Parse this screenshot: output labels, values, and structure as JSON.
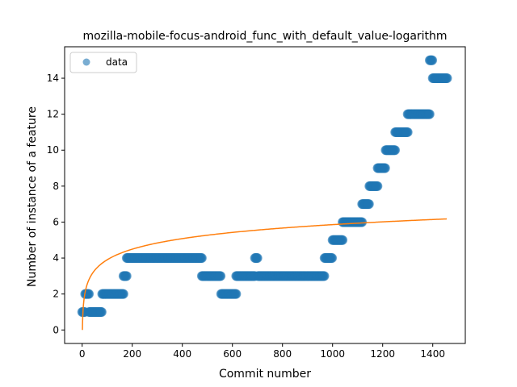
{
  "chart_data": {
    "type": "scatter",
    "title": "mozilla-mobile-focus-android_func_with_default_value-logarithm",
    "xlabel": "Commit number",
    "ylabel": "Number of instance of a feature",
    "xlim": [
      -70,
      1530
    ],
    "ylim": [
      -0.75,
      15.75
    ],
    "xticks": [
      0,
      200,
      400,
      600,
      800,
      1000,
      1200,
      1400
    ],
    "yticks": [
      0,
      2,
      4,
      6,
      8,
      10,
      12,
      14
    ],
    "grid": false,
    "legend": {
      "placement": "upper-left",
      "entries": [
        "data"
      ]
    },
    "colors": {
      "data": "#1f77b4",
      "fit": "#ff7f0e"
    },
    "series": [
      {
        "name": "data",
        "kind": "scatter",
        "segments": [
          {
            "x0": 0,
            "x1": 12,
            "y": 1
          },
          {
            "x0": 12,
            "x1": 28,
            "y": 2
          },
          {
            "x0": 28,
            "x1": 80,
            "y": 1
          },
          {
            "x0": 80,
            "x1": 165,
            "y": 2
          },
          {
            "x0": 165,
            "x1": 178,
            "y": 3
          },
          {
            "x0": 178,
            "x1": 478,
            "y": 4
          },
          {
            "x0": 478,
            "x1": 555,
            "y": 3
          },
          {
            "x0": 555,
            "x1": 615,
            "y": 2
          },
          {
            "x0": 615,
            "x1": 690,
            "y": 3
          },
          {
            "x0": 690,
            "x1": 702,
            "y": 4
          },
          {
            "x0": 702,
            "x1": 968,
            "y": 3
          },
          {
            "x0": 968,
            "x1": 1000,
            "y": 4
          },
          {
            "x0": 1000,
            "x1": 1040,
            "y": 5
          },
          {
            "x0": 1040,
            "x1": 1118,
            "y": 6
          },
          {
            "x0": 1118,
            "x1": 1147,
            "y": 7
          },
          {
            "x0": 1147,
            "x1": 1180,
            "y": 8
          },
          {
            "x0": 1180,
            "x1": 1212,
            "y": 9
          },
          {
            "x0": 1212,
            "x1": 1250,
            "y": 10
          },
          {
            "x0": 1250,
            "x1": 1300,
            "y": 11
          },
          {
            "x0": 1300,
            "x1": 1388,
            "y": 12
          },
          {
            "x0": 1388,
            "x1": 1400,
            "y": 15
          },
          {
            "x0": 1400,
            "x1": 1458,
            "y": 14
          }
        ]
      },
      {
        "name": "",
        "kind": "line",
        "fit": "logarithm",
        "a": 0.848,
        "b": 0.0,
        "x_range": [
          1,
          1458
        ],
        "x": [
          1,
          2,
          5,
          10,
          20,
          50,
          100,
          200,
          400,
          600,
          800,
          1000,
          1200,
          1458
        ],
        "y": [
          0.0,
          0.59,
          1.36,
          1.95,
          2.54,
          3.32,
          3.91,
          4.49,
          5.08,
          5.42,
          5.67,
          5.86,
          6.01,
          6.18
        ]
      }
    ]
  }
}
